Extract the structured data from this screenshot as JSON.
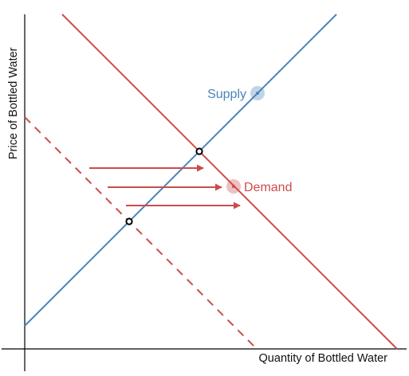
{
  "axes": {
    "x_label": "Quantity of Bottled Water",
    "y_label": "Price of Bottled Water"
  },
  "curves": {
    "supply": {
      "label": "Supply",
      "color": "#4a84ba"
    },
    "demand": {
      "label": "Demand",
      "color": "#cc4c4c"
    },
    "original_demand": {
      "color": "#cc4c4c",
      "style": "dashed"
    }
  },
  "shift_arrows": {
    "count": 3,
    "direction": "right",
    "color": "#cc4c4c"
  },
  "equilibria": {
    "count": 2,
    "marker": "hollow-circle"
  }
}
